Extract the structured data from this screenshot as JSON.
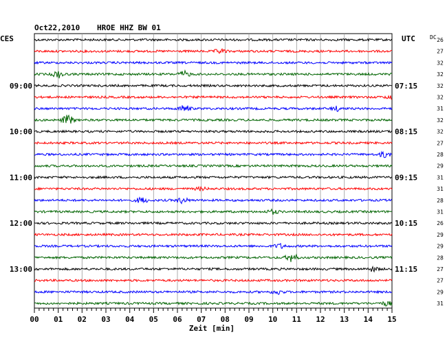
{
  "header": {
    "date": "Oct22,2010",
    "station": "HROE HHZ BW 01",
    "left_zone": "CES",
    "right_zone": "UTC",
    "dc_label": "DC"
  },
  "chart_data": {
    "type": "line",
    "title": "Oct22,2010   HROE HHZ BW 01",
    "xlabel": "Zeit [min]",
    "x_ticks": [
      "00",
      "01",
      "02",
      "03",
      "04",
      "05",
      "06",
      "07",
      "08",
      "09",
      "10",
      "11",
      "12",
      "13",
      "14",
      "15"
    ],
    "xlim": [
      0,
      15
    ],
    "grid": true,
    "minutes_per_trace": 15,
    "trace_count": 24,
    "trace_colors": [
      "#000000",
      "#ff0000",
      "#0000ff",
      "#006400"
    ],
    "left_time_labels": [
      {
        "trace": 4,
        "label": "09:00"
      },
      {
        "trace": 8,
        "label": "10:00"
      },
      {
        "trace": 12,
        "label": "11:00"
      },
      {
        "trace": 16,
        "label": "12:00"
      },
      {
        "trace": 20,
        "label": "13:00"
      }
    ],
    "right_time_labels": [
      {
        "trace": 4,
        "label": "07:15"
      },
      {
        "trace": 8,
        "label": "08:15"
      },
      {
        "trace": 12,
        "label": "09:15"
      },
      {
        "trace": 16,
        "label": "10:15"
      },
      {
        "trace": 20,
        "label": "11:15"
      }
    ],
    "dc_offsets": [
      "26",
      "27",
      "32",
      "32",
      "32",
      "32",
      "31",
      "32",
      "32",
      "27",
      "28",
      "29",
      "31",
      "31",
      "28",
      "31",
      "26",
      "29",
      "29",
      "28",
      "27",
      "27",
      "29",
      "31"
    ],
    "events": [
      {
        "trace": 1,
        "minute": 7.8,
        "amp": 3
      },
      {
        "trace": 3,
        "minute": 1.0,
        "amp": 5
      },
      {
        "trace": 3,
        "minute": 6.3,
        "amp": 4
      },
      {
        "trace": 5,
        "minute": 15.0,
        "amp": 3
      },
      {
        "trace": 6,
        "minute": 6.3,
        "amp": 5
      },
      {
        "trace": 6,
        "minute": 12.7,
        "amp": 3
      },
      {
        "trace": 7,
        "minute": 1.4,
        "amp": 7
      },
      {
        "trace": 10,
        "minute": 14.7,
        "amp": 4
      },
      {
        "trace": 13,
        "minute": 7.0,
        "amp": 2
      },
      {
        "trace": 14,
        "minute": 4.5,
        "amp": 4
      },
      {
        "trace": 14,
        "minute": 6.2,
        "amp": 4
      },
      {
        "trace": 15,
        "minute": 10.0,
        "amp": 3
      },
      {
        "trace": 18,
        "minute": 10.3,
        "amp": 3
      },
      {
        "trace": 19,
        "minute": 10.8,
        "amp": 6
      },
      {
        "trace": 20,
        "minute": 14.2,
        "amp": 3
      },
      {
        "trace": 22,
        "minute": 10.2,
        "amp": 3
      },
      {
        "trace": 23,
        "minute": 14.8,
        "amp": 3
      }
    ]
  }
}
